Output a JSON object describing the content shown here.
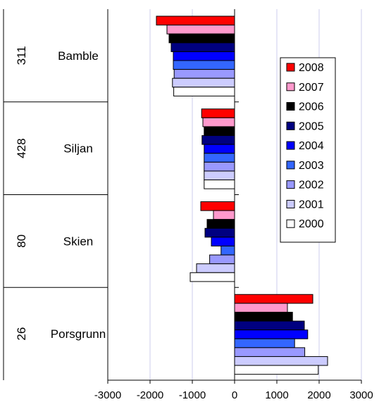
{
  "chart_data": {
    "type": "bar",
    "orientation": "horizontal",
    "row_groups": [
      {
        "code": "311",
        "name": "Bamble"
      },
      {
        "code": "428",
        "name": "Siljan"
      },
      {
        "code": "80",
        "name": "Skien"
      },
      {
        "code": "26",
        "name": "Porsgrunn"
      }
    ],
    "series": [
      {
        "name": "2008",
        "color": "#ff0000",
        "values": [
          -1850,
          -780,
          -800,
          1850
        ]
      },
      {
        "name": "2007",
        "color": "#ff99cc",
        "values": [
          -1600,
          -750,
          -500,
          1250
        ]
      },
      {
        "name": "2006",
        "color": "#000000",
        "values": [
          -1550,
          -720,
          -650,
          1370
        ]
      },
      {
        "name": "2005",
        "color": "#000080",
        "values": [
          -1500,
          -770,
          -700,
          1650
        ]
      },
      {
        "name": "2004",
        "color": "#0000ff",
        "values": [
          -1450,
          -720,
          -550,
          1730
        ]
      },
      {
        "name": "2003",
        "color": "#3366ff",
        "values": [
          -1450,
          -720,
          -320,
          1420
        ]
      },
      {
        "name": "2002",
        "color": "#9999ff",
        "values": [
          -1430,
          -720,
          -590,
          1660
        ]
      },
      {
        "name": "2001",
        "color": "#ccccff",
        "values": [
          -1470,
          -720,
          -900,
          2200
        ]
      },
      {
        "name": "2000",
        "color": "#ffffff",
        "values": [
          -1440,
          -720,
          -1050,
          1980
        ]
      }
    ],
    "x_ticks": [
      -3000,
      -2000,
      -1000,
      0,
      1000,
      2000,
      3000
    ],
    "x_tick_labels": [
      "-3000",
      "-2000",
      "-1000",
      "0",
      "1000",
      "2000",
      "3000"
    ],
    "xlim": [
      -3000,
      3000
    ],
    "gridlines": true,
    "gridline_color": "#ccccee",
    "legend_position": "right"
  }
}
